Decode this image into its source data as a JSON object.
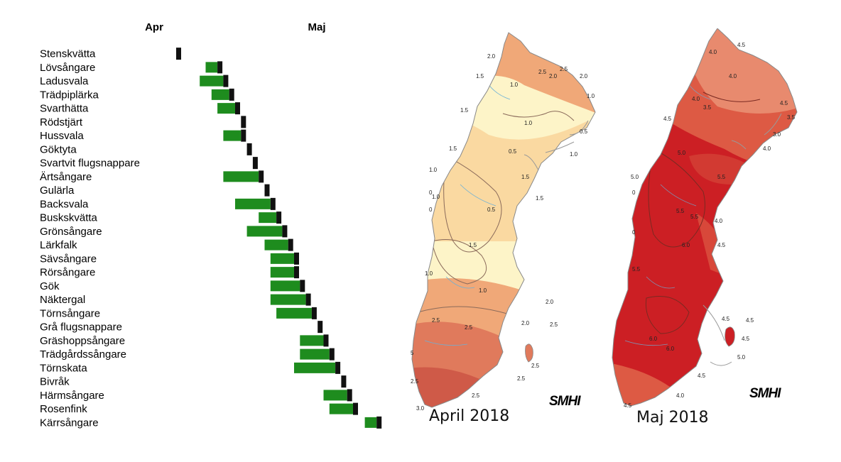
{
  "chart_data": {
    "type": "bar",
    "months": [
      "Apr",
      "Maj"
    ],
    "categories": [
      "Stenskvätta",
      "Lövsångare",
      "Ladusvala",
      "Trädpiplärka",
      "Svarthätta",
      "Rödstjärt",
      "Hussvala",
      "Göktyta",
      "Svartvit flugsnappare",
      "Ärtsångare",
      "Gulärla",
      "Backsvala",
      "Buskskvätta",
      "Grönsångare",
      "Lärkfalk",
      "Sävsångare",
      "Rörsångare",
      "Gök",
      "Näktergal",
      "Törnsångare",
      "Grå flugsnappare",
      "Gräshoppsångare",
      "Trädgårdssångare",
      "Törnskata",
      "Bivråk",
      "Härmsångare",
      "Rosenfink",
      "Kärrsångare"
    ],
    "green_start_day": [
      null,
      5,
      4,
      6,
      7,
      null,
      8,
      null,
      13,
      8,
      null,
      10,
      14,
      12,
      15,
      16,
      16,
      16,
      16,
      17,
      null,
      21,
      21,
      20,
      null,
      25,
      26,
      32
    ],
    "black_marker_day": [
      0,
      7,
      8,
      9,
      10,
      11,
      11,
      12,
      13,
      14,
      15,
      16,
      17,
      18,
      19,
      20,
      20,
      21,
      22,
      23,
      24,
      25,
      26,
      27,
      28,
      29,
      30,
      34
    ],
    "colors": {
      "shift": "#1e8c1e",
      "marker": "#111111"
    }
  },
  "maps": [
    {
      "caption": "April 2018",
      "logo": "SMHI",
      "isolines": [
        "2.0",
        "2.5",
        "2.0",
        "2.5",
        "2.0",
        "1.5",
        "1.0",
        "1.0",
        "1.5",
        "1.0",
        "0.5",
        "1.5",
        "1.0",
        "1.0",
        "0.5",
        "1.5",
        "1.5",
        "1.0",
        "0",
        "0",
        "0.5",
        "1.5",
        "1.0",
        "1.0",
        "2.0",
        "2.5",
        "2.5",
        "2.0",
        "2.5",
        "5",
        "2.5",
        "2.5",
        "2.5",
        "2.5",
        "3.0"
      ],
      "colors": [
        "#fdf4c8",
        "#f9d49a",
        "#f0a878",
        "#e07a5c",
        "#cf5a48"
      ]
    },
    {
      "caption": "Maj 2018",
      "logo": "SMHI",
      "isolines": [
        "4.0",
        "4.5",
        "4.0",
        "4.5",
        "4.0",
        "3.5",
        "3.5",
        "4.5",
        "3.0",
        "4.0",
        "5.0",
        "5.5",
        "5.0",
        "0",
        "5.5",
        "0",
        "4.0",
        "4.5",
        "6.0",
        "5.5",
        "5.5",
        "4.5",
        "4.5",
        "4.5",
        "5.0",
        "6.0",
        "6.0",
        "4.5",
        "4.0",
        "4.5"
      ],
      "colors": [
        "#e88a6e",
        "#dd5a44",
        "#d23a32",
        "#cc1f24"
      ]
    }
  ]
}
